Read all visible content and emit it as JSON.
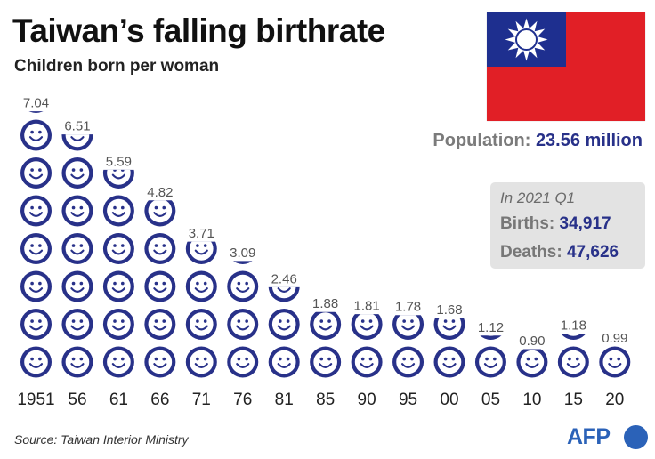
{
  "title": "Taiwan’s falling birthrate",
  "subtitle": "Children born per woman",
  "population": {
    "label": "Population:",
    "value": "23.56 million"
  },
  "stats": {
    "period": "In 2021 Q1",
    "births_label": "Births:",
    "births_value": "34,917",
    "deaths_label": "Deaths:",
    "deaths_value": "47,626"
  },
  "source": "Source: Taiwan Interior Ministry",
  "logo": "AFP",
  "colors": {
    "icon_blue": "#283189",
    "flag_red": "#e11f26",
    "flag_blue": "#1e2f8f",
    "afp_blue": "#2b62b8"
  },
  "icons": {
    "child": "smiley-face-icon",
    "flag": "taiwan-flag-icon"
  },
  "chart_data": {
    "type": "pictogram",
    "title": "Taiwan’s falling birthrate",
    "subtitle": "Children born per woman",
    "categories": [
      "1951",
      "56",
      "61",
      "66",
      "71",
      "76",
      "81",
      "85",
      "90",
      "95",
      "00",
      "05",
      "10",
      "15",
      "20"
    ],
    "values": [
      7.04,
      6.51,
      5.59,
      4.82,
      3.71,
      3.09,
      2.46,
      1.88,
      1.81,
      1.78,
      1.68,
      1.12,
      0.9,
      1.18,
      0.99
    ],
    "value_labels": [
      "7.04",
      "6.51",
      "5.59",
      "4.82",
      "3.71",
      "3.09",
      "2.46",
      "1.88",
      "1.81",
      "1.78",
      "1.68",
      "1.12",
      "0.90",
      "1.18",
      "0.99"
    ],
    "unit_per_icon": 1,
    "grid": false
  }
}
